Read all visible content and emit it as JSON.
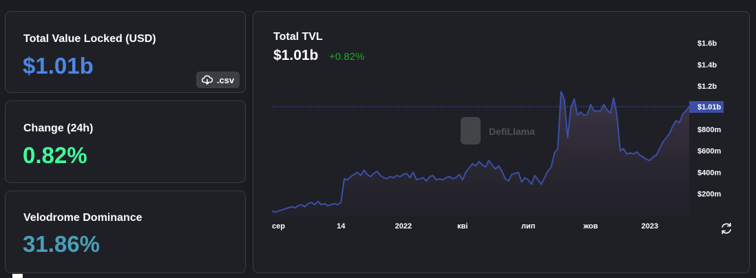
{
  "stats": {
    "tvl": {
      "label": "Total Value Locked (USD)",
      "value": "$1.01b"
    },
    "change": {
      "label": "Change (24h)",
      "value": "0.82%"
    },
    "dominance": {
      "label": "Velodrome Dominance",
      "value": "31.86%"
    }
  },
  "csv_button": {
    "label": ".csv",
    "icon": "cloud-download-icon"
  },
  "chart": {
    "title": "Total TVL",
    "value": "$1.01b",
    "change": "+0.82%",
    "watermark": "DefiLlama",
    "current_label": "$1.01b"
  },
  "colors": {
    "tvl_value": "#4a88e6",
    "change_value": "#3dff99",
    "dominance_value": "#4a9fb8",
    "chart_change": "#1fa81f",
    "line": "#3c4fa8",
    "current_label_bg": "#3c4fa8"
  },
  "chart_data": {
    "type": "area",
    "title": "Total TVL",
    "xlabel": "",
    "ylabel": "",
    "ylim": [
      0,
      1.7
    ],
    "yunit": "billion USD",
    "grid": false,
    "legend": "none",
    "y_ticks": [
      {
        "value": 0.2,
        "label": "$200m"
      },
      {
        "value": 0.4,
        "label": "$400m"
      },
      {
        "value": 0.6,
        "label": "$600m"
      },
      {
        "value": 0.8,
        "label": "$800m"
      },
      {
        "value": 1.2,
        "label": "$1.2b"
      },
      {
        "value": 1.4,
        "label": "$1.4b"
      },
      {
        "value": 1.6,
        "label": "$1.6b"
      }
    ],
    "x_ticks": [
      {
        "index": 2,
        "label": "сер"
      },
      {
        "index": 21,
        "label": "14"
      },
      {
        "index": 40,
        "label": "2022"
      },
      {
        "index": 58,
        "label": "кві"
      },
      {
        "index": 78,
        "label": "лип"
      },
      {
        "index": 97,
        "label": "жов"
      },
      {
        "index": 115,
        "label": "2023"
      }
    ],
    "current_value": 1.01,
    "series": [
      {
        "values": [
          0.04,
          0.03,
          0.04,
          0.05,
          0.06,
          0.07,
          0.08,
          0.07,
          0.09,
          0.1,
          0.08,
          0.11,
          0.12,
          0.1,
          0.13,
          0.1,
          0.11,
          0.09,
          0.1,
          0.11,
          0.1,
          0.12,
          0.34,
          0.33,
          0.36,
          0.38,
          0.4,
          0.37,
          0.42,
          0.38,
          0.36,
          0.39,
          0.41,
          0.37,
          0.35,
          0.34,
          0.36,
          0.35,
          0.37,
          0.36,
          0.38,
          0.39,
          0.35,
          0.4,
          0.33,
          0.34,
          0.35,
          0.32,
          0.36,
          0.37,
          0.33,
          0.34,
          0.33,
          0.35,
          0.36,
          0.34,
          0.35,
          0.38,
          0.33,
          0.4,
          0.44,
          0.48,
          0.46,
          0.5,
          0.47,
          0.45,
          0.51,
          0.47,
          0.43,
          0.46,
          0.41,
          0.34,
          0.32,
          0.38,
          0.39,
          0.4,
          0.31,
          0.35,
          0.33,
          0.29,
          0.37,
          0.33,
          0.29,
          0.35,
          0.41,
          0.45,
          0.58,
          0.62,
          1.15,
          1.08,
          0.72,
          1.0,
          1.08,
          0.93,
          0.96,
          0.93,
          0.94,
          1.03,
          0.97,
          0.97,
          0.97,
          1.03,
          0.98,
          0.95,
          1.09,
          0.93,
          0.6,
          0.62,
          0.57,
          0.58,
          0.57,
          0.59,
          0.56,
          0.54,
          0.52,
          0.51,
          0.54,
          0.56,
          0.62,
          0.68,
          0.72,
          0.76,
          0.83,
          0.88,
          0.86,
          0.94,
          0.97,
          1.01
        ]
      }
    ]
  }
}
